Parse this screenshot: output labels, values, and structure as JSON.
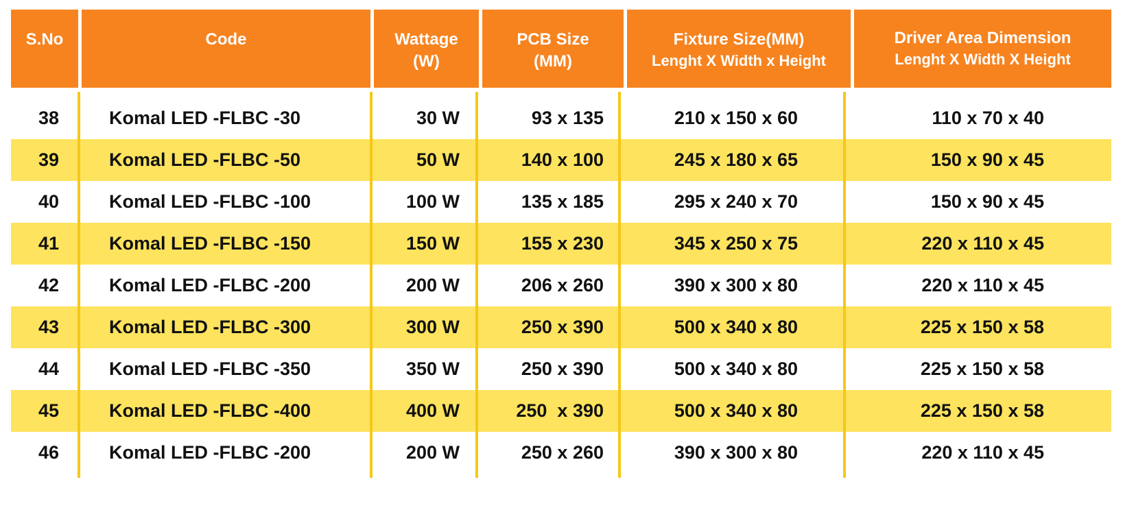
{
  "table": {
    "headers": [
      {
        "main": "S.No",
        "sub": ""
      },
      {
        "main": "Code",
        "sub": ""
      },
      {
        "main": "Wattage",
        "sub": "(W)"
      },
      {
        "main": "PCB Size",
        "sub": "(MM)"
      },
      {
        "main": "Fixture Size(MM)",
        "sub": "Lenght X Width x Height"
      },
      {
        "main": "Driver Area Dimension",
        "sub": "Lenght X Width X Height"
      }
    ],
    "rows": [
      {
        "sno": "38",
        "code": "Komal LED -FLBC -30",
        "wattage": "30 W",
        "pcb": "93 x 135",
        "fixture": "210 x 150 x 60",
        "driver": "110 x 70 x 40"
      },
      {
        "sno": "39",
        "code": "Komal LED -FLBC -50",
        "wattage": "50 W",
        "pcb": "140 x 100",
        "fixture": "245 x 180 x 65",
        "driver": "150 x 90 x 45"
      },
      {
        "sno": "40",
        "code": "Komal LED -FLBC -100",
        "wattage": "100 W",
        "pcb": "135 x 185",
        "fixture": "295 x 240 x 70",
        "driver": "150 x 90 x 45"
      },
      {
        "sno": "41",
        "code": "Komal LED -FLBC -150",
        "wattage": "150 W",
        "pcb": "155 x 230",
        "fixture": "345 x 250 x 75",
        "driver": "220 x 110 x 45"
      },
      {
        "sno": "42",
        "code": "Komal LED -FLBC -200",
        "wattage": "200 W",
        "pcb": "206 x 260",
        "fixture": "390 x 300 x 80",
        "driver": "220 x 110 x 45"
      },
      {
        "sno": "43",
        "code": "Komal LED -FLBC -300",
        "wattage": "300 W",
        "pcb": "250 x 390",
        "fixture": "500 x 340 x 80",
        "driver": "225 x 150 x 58"
      },
      {
        "sno": "44",
        "code": "Komal LED -FLBC -350",
        "wattage": "350 W",
        "pcb": "250 x 390",
        "fixture": "500 x 340 x 80",
        "driver": "225 x 150 x 58"
      },
      {
        "sno": "45",
        "code": "Komal LED -FLBC -400",
        "wattage": "400 W",
        "pcb": "250  x 390",
        "fixture": "500 x 340 x 80",
        "driver": "225 x 150 x 58"
      },
      {
        "sno": "46",
        "code": "Komal LED -FLBC -200",
        "wattage": "200 W",
        "pcb": "250 x 260",
        "fixture": "390 x 300 x 80",
        "driver": "220 x 110 x 45"
      }
    ]
  },
  "colors": {
    "header_bg": "#f7831f",
    "header_text": "#ffffff",
    "alt_row_bg": "#fde35e",
    "separator": "#f5c816"
  }
}
